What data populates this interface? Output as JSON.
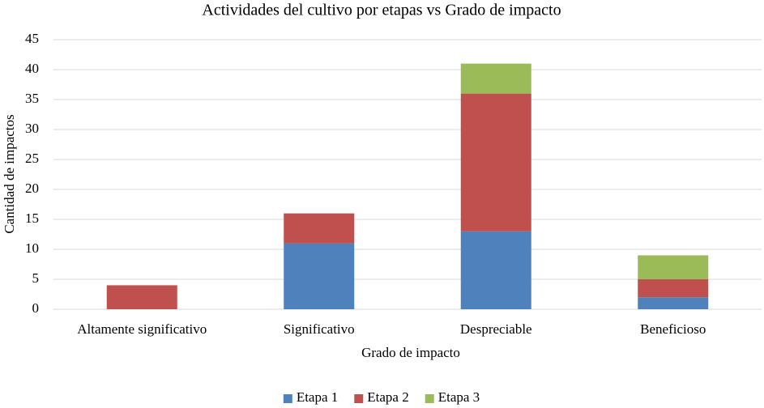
{
  "chart_data": {
    "type": "stacked_bar",
    "title": "Actividades del cultivo por etapas vs Grado de impacto",
    "x_label": "Grado de impacto",
    "y_label": "Cantidad de impactos",
    "categories": [
      "Altamente significativo",
      "Significativo",
      "Despreciable",
      "Beneficioso"
    ],
    "series": [
      {
        "name": "Etapa 1",
        "color": "#4f81bd",
        "values": [
          0,
          11,
          13,
          2
        ]
      },
      {
        "name": "Etapa 2",
        "color": "#c0504d",
        "values": [
          4,
          5,
          23,
          3
        ]
      },
      {
        "name": "Etapa 3",
        "color": "#9bbb59",
        "values": [
          0,
          0,
          5,
          4
        ]
      }
    ],
    "ylim": [
      0,
      45
    ],
    "yticks": [
      0,
      5,
      10,
      15,
      20,
      25,
      30,
      35,
      40,
      45
    ],
    "grid": true,
    "legend": "bottom"
  }
}
